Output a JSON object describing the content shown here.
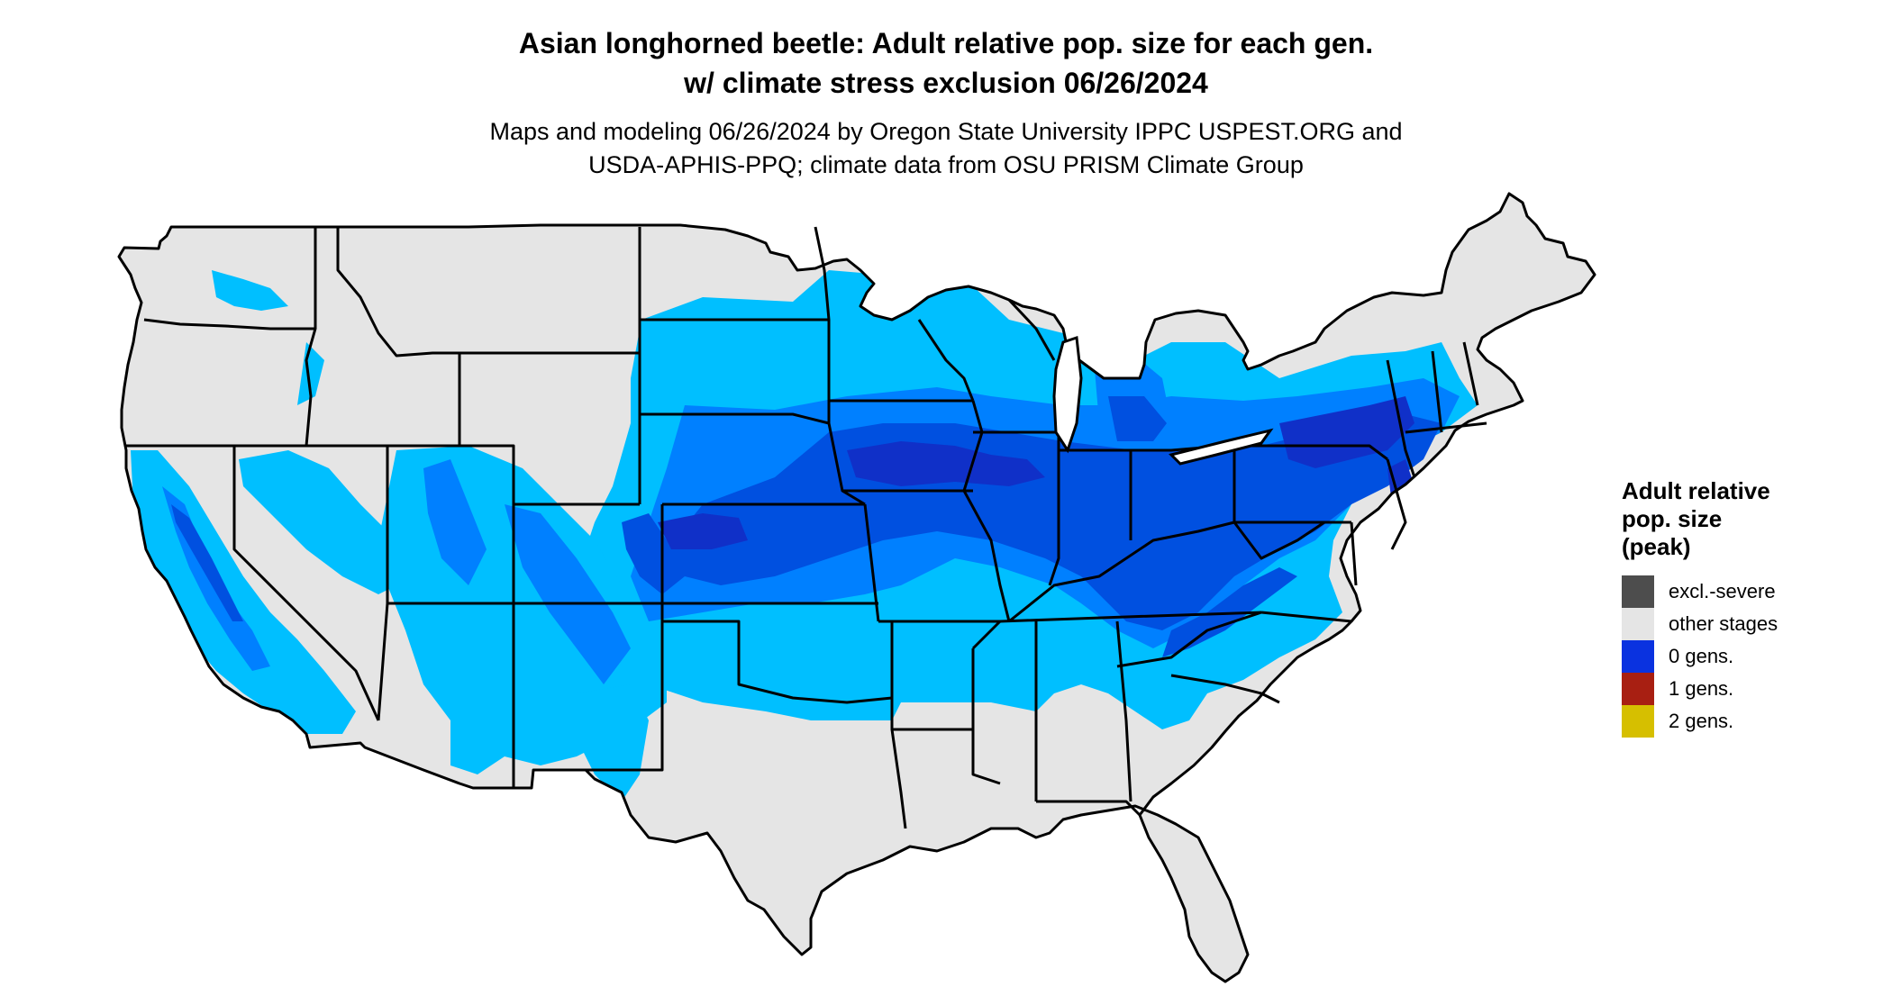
{
  "title": {
    "line1": "Asian longhorned beetle: Adult relative pop. size for each gen.",
    "line2": "w/ climate stress exclusion 06/26/2024"
  },
  "subtitle": {
    "line1": "Maps and modeling 06/26/2024 by Oregon State University IPPC USPEST.ORG and",
    "line2": "USDA-APHIS-PPQ; climate data from OSU PRISM Climate Group"
  },
  "map": {
    "region": "contiguous United States",
    "colors": {
      "background": "#e5e5e5",
      "light_blue": "#00bfff",
      "medium_blue": "#0080ff",
      "dark_blue": "#0050e0",
      "deep_blue": "#1030c8",
      "borders": "#000000"
    }
  },
  "legend": {
    "title_line1": "Adult relative",
    "title_line2": "pop. size",
    "title_line3": "(peak)",
    "items": [
      {
        "label": "excl.-severe",
        "color": "#4d4d4d"
      },
      {
        "label": "other stages",
        "color": "#e5e5e5"
      },
      {
        "label": "0 gens.",
        "color": "#0a32e0"
      },
      {
        "label": "1 gens.",
        "color": "#a81f12"
      },
      {
        "label": "2 gens.",
        "color": "#d6bf00"
      }
    ]
  }
}
